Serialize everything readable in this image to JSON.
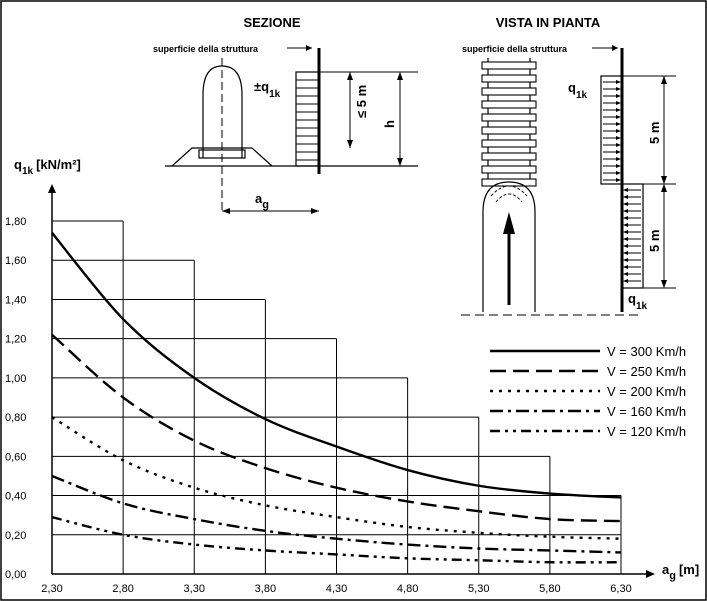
{
  "chart_data": {
    "type": "line",
    "x": [
      2.3,
      2.8,
      3.3,
      3.8,
      4.3,
      4.8,
      5.3,
      5.8,
      6.3
    ],
    "x_tick_labels": [
      "2,30",
      "2,80",
      "3,30",
      "3,80",
      "4,30",
      "4,80",
      "5,30",
      "5,80",
      "6,30"
    ],
    "y_tick_labels": [
      "0,00",
      "0,20",
      "0,40",
      "0,60",
      "0,80",
      "1,00",
      "1,20",
      "1,40",
      "1,60",
      "1,80"
    ],
    "xlim": [
      2.3,
      6.3
    ],
    "ylim": [
      0,
      1.8
    ],
    "ylabel": "q",
    "ylabel_sub": "1k",
    "ylabel_unit": "[kN/m²]",
    "xlabel": "a",
    "xlabel_sub": "g",
    "xlabel_unit": "[m]",
    "grid": "stepped",
    "legend_position": "right",
    "series": [
      {
        "name": "V = 300 Km/h",
        "dash": "solid",
        "values": [
          1.74,
          1.3,
          1.0,
          0.79,
          0.65,
          0.53,
          0.45,
          0.41,
          0.39
        ]
      },
      {
        "name": "V = 250 Km/h",
        "dash": "long-dash",
        "values": [
          1.22,
          0.9,
          0.68,
          0.54,
          0.44,
          0.37,
          0.32,
          0.28,
          0.27
        ]
      },
      {
        "name": "V = 200 Km/h",
        "dash": "dot",
        "values": [
          0.8,
          0.58,
          0.44,
          0.35,
          0.29,
          0.24,
          0.21,
          0.19,
          0.18
        ]
      },
      {
        "name": "V = 160 Km/h",
        "dash": "dash-dot",
        "values": [
          0.5,
          0.36,
          0.28,
          0.22,
          0.18,
          0.15,
          0.13,
          0.12,
          0.11
        ]
      },
      {
        "name": "V = 120 Km/h",
        "dash": "dash-dot-dot",
        "values": [
          0.29,
          0.2,
          0.15,
          0.12,
          0.1,
          0.08,
          0.07,
          0.06,
          0.06
        ]
      }
    ]
  },
  "diagram": {
    "section_title": "SEZIONE",
    "plan_title": "VISTA IN PIANTA",
    "structure_surface": "superficie della struttura",
    "load_pm": "±q",
    "load": "q",
    "sub_1k": "1k",
    "max_height": "≤ 5 m",
    "height": "h",
    "distance": "a",
    "distance_sub": "g",
    "five_m": "5 m"
  }
}
